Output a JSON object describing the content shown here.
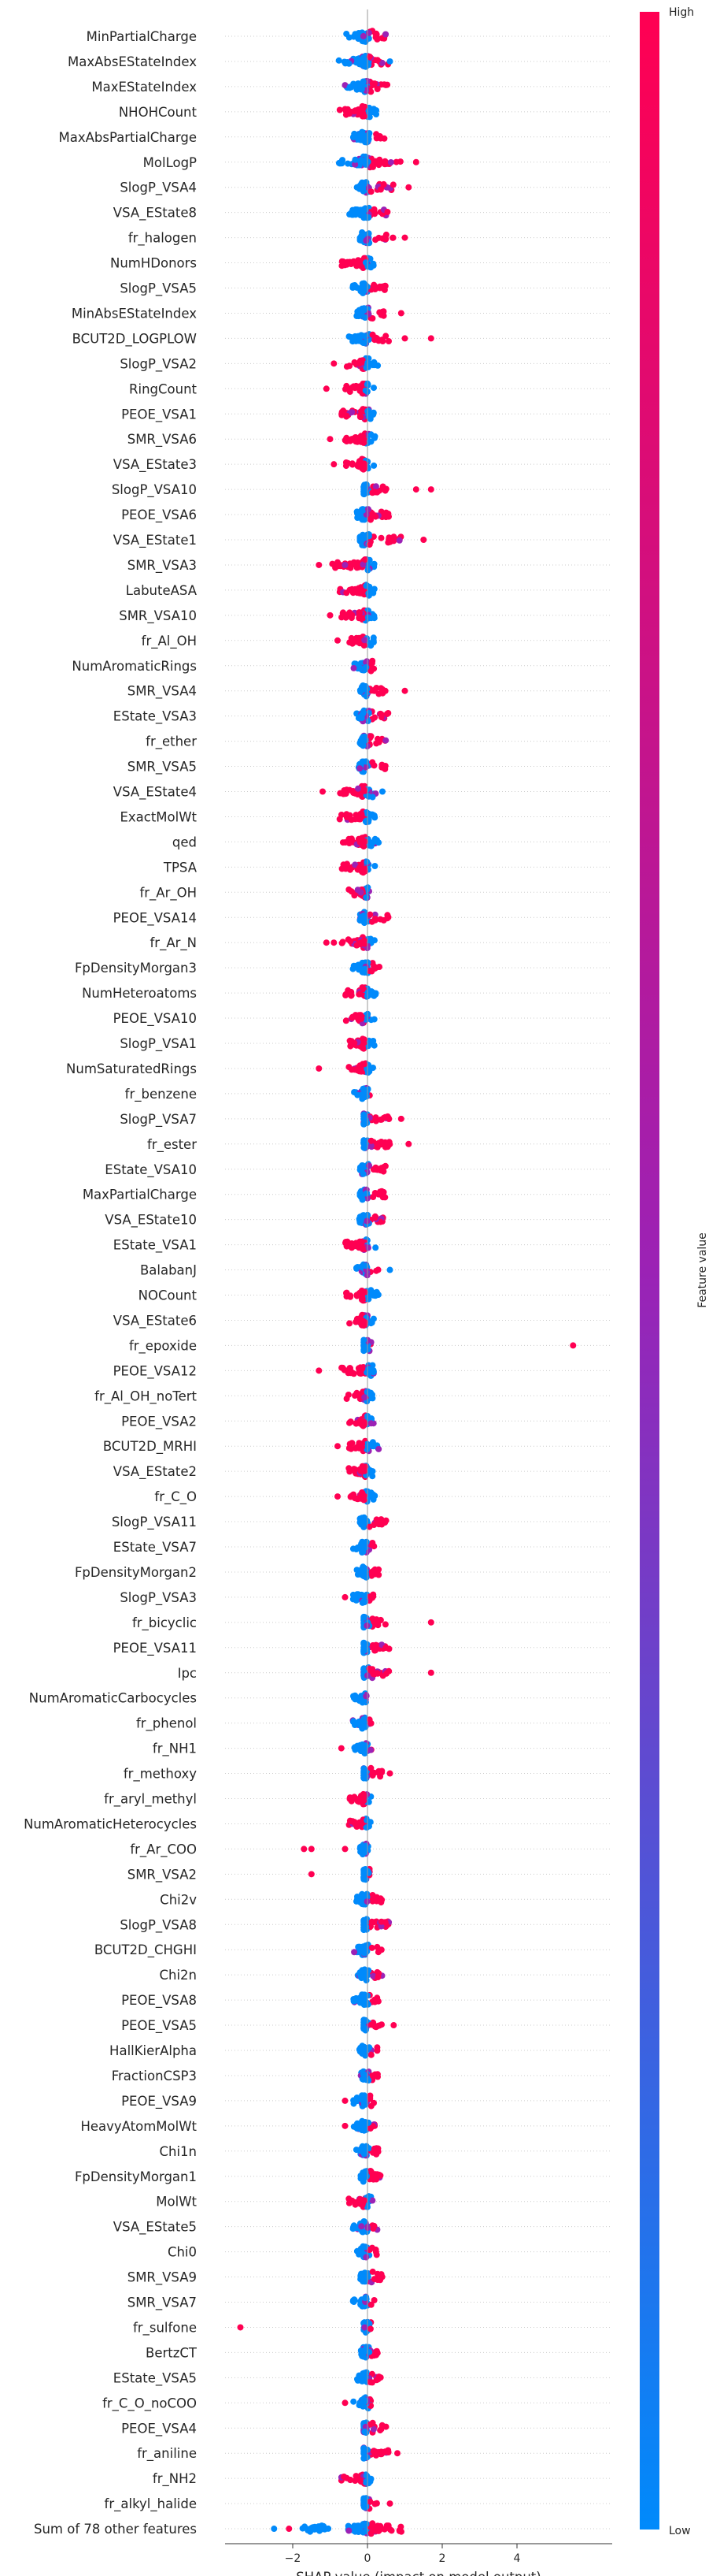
{
  "chart_data": {
    "type": "scatter",
    "subtype": "shap-beeswarm-summary",
    "xlabel": "SHAP value (impact on model output)",
    "xticks": [
      -2,
      0,
      2,
      4
    ],
    "xlim": [
      -3.7,
      6.7
    ],
    "colorbar": {
      "label": "Feature value",
      "high": "High",
      "low": "Low",
      "low_color": "#008afb",
      "mid_color": "#9b22b5",
      "high_color": "#ff0052"
    },
    "features": [
      {
        "name": "MinPartialCharge",
        "min": -0.6,
        "max": 0.6,
        "ol": []
      },
      {
        "name": "MaxAbsEStateIndex",
        "min": -0.8,
        "max": 0.6,
        "ol": [
          [
            0.6,
            "L"
          ]
        ]
      },
      {
        "name": "MaxEStateIndex",
        "min": -0.7,
        "max": 0.6,
        "ol": []
      },
      {
        "name": "NHOHCount",
        "min": -0.8,
        "max": 0.3,
        "ol": []
      },
      {
        "name": "MaxAbsPartialCharge",
        "min": -0.5,
        "max": 0.5,
        "ol": []
      },
      {
        "name": "MolLogP",
        "min": -0.8,
        "max": 0.9,
        "ol": [
          [
            1.3,
            "H"
          ]
        ]
      },
      {
        "name": "SlogP_VSA4",
        "min": -0.3,
        "max": 0.7,
        "ol": [
          [
            1.1,
            "H"
          ]
        ]
      },
      {
        "name": "VSA_EState8",
        "min": -0.5,
        "max": 0.7,
        "ol": []
      },
      {
        "name": "fr_halogen",
        "min": -0.2,
        "max": 0.7,
        "ol": [
          [
            1.0,
            "H"
          ]
        ]
      },
      {
        "name": "NumHDonors",
        "min": -0.7,
        "max": 0.2,
        "ol": []
      },
      {
        "name": "SlogP_VSA5",
        "min": -0.4,
        "max": 0.5,
        "ol": []
      },
      {
        "name": "MinAbsEStateIndex",
        "min": -0.4,
        "max": 0.5,
        "ol": [
          [
            0.9,
            "H"
          ]
        ]
      },
      {
        "name": "BCUT2D_LOGPLOW",
        "min": -0.5,
        "max": 0.6,
        "ol": [
          [
            1.0,
            "H"
          ],
          [
            1.7,
            "H"
          ]
        ]
      },
      {
        "name": "SlogP_VSA2",
        "min": -0.6,
        "max": 0.3,
        "ol": [
          [
            -0.9,
            "H"
          ]
        ]
      },
      {
        "name": "RingCount",
        "min": -0.6,
        "max": 0.2,
        "ol": [
          [
            -1.1,
            "H"
          ]
        ]
      },
      {
        "name": "PEOE_VSA1",
        "min": -0.7,
        "max": 0.2,
        "ol": []
      },
      {
        "name": "SMR_VSA6",
        "min": -0.6,
        "max": 0.2,
        "ol": [
          [
            -1.0,
            "H"
          ]
        ]
      },
      {
        "name": "VSA_EState3",
        "min": -0.6,
        "max": 0.2,
        "ol": [
          [
            -0.9,
            "H"
          ]
        ]
      },
      {
        "name": "SlogP_VSA10",
        "min": -0.1,
        "max": 0.6,
        "ol": [
          [
            1.3,
            "H"
          ],
          [
            1.7,
            "H"
          ]
        ]
      },
      {
        "name": "PEOE_VSA6",
        "min": -0.3,
        "max": 0.6,
        "ol": []
      },
      {
        "name": "VSA_EState1",
        "min": -0.2,
        "max": 0.9,
        "ol": [
          [
            1.5,
            "H"
          ]
        ]
      },
      {
        "name": "SMR_VSA3",
        "min": -1.0,
        "max": 0.2,
        "ol": [
          [
            -1.3,
            "H"
          ]
        ]
      },
      {
        "name": "LabuteASA",
        "min": -0.8,
        "max": 0.3,
        "ol": []
      },
      {
        "name": "SMR_VSA10",
        "min": -0.7,
        "max": 0.2,
        "ol": [
          [
            -1.0,
            "H"
          ]
        ]
      },
      {
        "name": "fr_Al_OH",
        "min": -0.5,
        "max": 0.2,
        "ol": [
          [
            -0.8,
            "H"
          ]
        ]
      },
      {
        "name": "NumAromaticRings",
        "min": -0.4,
        "max": 0.2,
        "ol": []
      },
      {
        "name": "SMR_VSA4",
        "min": -0.2,
        "max": 0.5,
        "ol": [
          [
            1.0,
            "H"
          ]
        ]
      },
      {
        "name": "EState_VSA3",
        "min": -0.3,
        "max": 0.6,
        "ol": []
      },
      {
        "name": "fr_ether",
        "min": -0.2,
        "max": 0.5,
        "ol": []
      },
      {
        "name": "SMR_VSA5",
        "min": -0.3,
        "max": 0.5,
        "ol": []
      },
      {
        "name": "VSA_EState4",
        "min": -0.8,
        "max": 0.3,
        "ol": [
          [
            -1.2,
            "H"
          ],
          [
            0.4,
            "L"
          ]
        ]
      },
      {
        "name": "ExactMolWt",
        "min": -0.8,
        "max": 0.2,
        "ol": []
      },
      {
        "name": "qed",
        "min": -0.7,
        "max": 0.3,
        "ol": []
      },
      {
        "name": "TPSA",
        "min": -0.7,
        "max": 0.2,
        "ol": []
      },
      {
        "name": "fr_Ar_OH",
        "min": -0.5,
        "max": 0.1,
        "ol": []
      },
      {
        "name": "PEOE_VSA14",
        "min": -0.2,
        "max": 0.6,
        "ol": []
      },
      {
        "name": "fr_Ar_N",
        "min": -0.7,
        "max": 0.2,
        "ol": [
          [
            -1.1,
            "H"
          ],
          [
            -0.9,
            "H"
          ]
        ]
      },
      {
        "name": "FpDensityMorgan3",
        "min": -0.4,
        "max": 0.4,
        "ol": []
      },
      {
        "name": "NumHeteroatoms",
        "min": -0.6,
        "max": 0.3,
        "ol": []
      },
      {
        "name": "PEOE_VSA10",
        "min": -0.6,
        "max": 0.2,
        "ol": []
      },
      {
        "name": "SlogP_VSA1",
        "min": -0.5,
        "max": 0.2,
        "ol": []
      },
      {
        "name": "NumSaturatedRings",
        "min": -0.6,
        "max": 0.2,
        "ol": [
          [
            -1.3,
            "H"
          ]
        ]
      },
      {
        "name": "fr_benzene",
        "min": -0.4,
        "max": 0.1,
        "ol": []
      },
      {
        "name": "SlogP_VSA7",
        "min": -0.1,
        "max": 0.6,
        "ol": [
          [
            0.9,
            "H"
          ]
        ]
      },
      {
        "name": "fr_ester",
        "min": -0.1,
        "max": 0.6,
        "ol": [
          [
            1.1,
            "H"
          ]
        ]
      },
      {
        "name": "EState_VSA10",
        "min": -0.2,
        "max": 0.5,
        "ol": []
      },
      {
        "name": "MaxPartialCharge",
        "min": -0.2,
        "max": 0.5,
        "ol": []
      },
      {
        "name": "VSA_EState10",
        "min": -0.3,
        "max": 0.5,
        "ol": []
      },
      {
        "name": "EState_VSA1",
        "min": -0.6,
        "max": 0.3,
        "ol": []
      },
      {
        "name": "BalabanJ",
        "min": -0.3,
        "max": 0.3,
        "ol": [
          [
            0.6,
            "L"
          ]
        ]
      },
      {
        "name": "NOCount",
        "min": -0.6,
        "max": 0.3,
        "ol": []
      },
      {
        "name": "VSA_EState6",
        "min": -0.5,
        "max": 0.2,
        "ol": []
      },
      {
        "name": "fr_epoxide",
        "min": -0.1,
        "max": 0.1,
        "ol": [
          [
            5.5,
            "H"
          ]
        ]
      },
      {
        "name": "PEOE_VSA12",
        "min": -0.7,
        "max": 0.2,
        "ol": [
          [
            -1.3,
            "H"
          ]
        ]
      },
      {
        "name": "fr_Al_OH_noTert",
        "min": -0.6,
        "max": 0.2,
        "ol": []
      },
      {
        "name": "PEOE_VSA2",
        "min": -0.5,
        "max": 0.2,
        "ol": []
      },
      {
        "name": "BCUT2D_MRHI",
        "min": -0.5,
        "max": 0.4,
        "ol": [
          [
            -0.8,
            "H"
          ]
        ]
      },
      {
        "name": "VSA_EState2",
        "min": -0.5,
        "max": 0.2,
        "ol": []
      },
      {
        "name": "fr_C_O",
        "min": -0.5,
        "max": 0.2,
        "ol": [
          [
            -0.8,
            "H"
          ]
        ]
      },
      {
        "name": "SlogP_VSA11",
        "min": -0.2,
        "max": 0.5,
        "ol": []
      },
      {
        "name": "EState_VSA7",
        "min": -0.4,
        "max": 0.2,
        "ol": []
      },
      {
        "name": "FpDensityMorgan2",
        "min": -0.3,
        "max": 0.3,
        "ol": []
      },
      {
        "name": "SlogP_VSA3",
        "min": -0.4,
        "max": 0.2,
        "ol": [
          [
            -0.6,
            "H"
          ]
        ]
      },
      {
        "name": "fr_bicyclic",
        "min": -0.1,
        "max": 0.5,
        "ol": [
          [
            1.7,
            "H"
          ]
        ]
      },
      {
        "name": "PEOE_VSA11",
        "min": -0.1,
        "max": 0.6,
        "ol": []
      },
      {
        "name": "Ipc",
        "min": -0.1,
        "max": 0.6,
        "ol": [
          [
            1.7,
            "H"
          ]
        ]
      },
      {
        "name": "NumAromaticCarbocycles",
        "min": -0.4,
        "max": 0.1,
        "ol": []
      },
      {
        "name": "fr_phenol",
        "min": -0.4,
        "max": 0.1,
        "ol": []
      },
      {
        "name": "fr_NH1",
        "min": -0.4,
        "max": 0.2,
        "ol": [
          [
            -0.7,
            "H"
          ]
        ]
      },
      {
        "name": "fr_methoxy",
        "min": -0.1,
        "max": 0.4,
        "ol": [
          [
            0.6,
            "H"
          ]
        ]
      },
      {
        "name": "fr_aryl_methyl",
        "min": -0.5,
        "max": 0.1,
        "ol": []
      },
      {
        "name": "NumAromaticHeterocycles",
        "min": -0.5,
        "max": 0.1,
        "ol": []
      },
      {
        "name": "fr_Ar_COO",
        "min": -0.2,
        "max": 0.1,
        "ol": [
          [
            -1.7,
            "H"
          ],
          [
            -1.5,
            "H"
          ],
          [
            -0.6,
            "H"
          ]
        ]
      },
      {
        "name": "SMR_VSA2",
        "min": -0.1,
        "max": 0.1,
        "ol": [
          [
            -1.5,
            "H"
          ]
        ]
      },
      {
        "name": "Chi2v",
        "min": -0.3,
        "max": 0.4,
        "ol": []
      },
      {
        "name": "SlogP_VSA8",
        "min": -0.1,
        "max": 0.6,
        "ol": []
      },
      {
        "name": "BCUT2D_CHGHI",
        "min": -0.4,
        "max": 0.4,
        "ol": []
      },
      {
        "name": "Chi2n",
        "min": -0.3,
        "max": 0.4,
        "ol": []
      },
      {
        "name": "PEOE_VSA8",
        "min": -0.4,
        "max": 0.3,
        "ol": []
      },
      {
        "name": "PEOE_VSA5",
        "min": -0.1,
        "max": 0.4,
        "ol": [
          [
            0.7,
            "H"
          ]
        ]
      },
      {
        "name": "HallKierAlpha",
        "min": -0.3,
        "max": 0.3,
        "ol": []
      },
      {
        "name": "FractionCSP3",
        "min": -0.2,
        "max": 0.3,
        "ol": []
      },
      {
        "name": "PEOE_VSA9",
        "min": -0.4,
        "max": 0.2,
        "ol": [
          [
            -0.6,
            "H"
          ]
        ]
      },
      {
        "name": "HeavyAtomMolWt",
        "min": -0.4,
        "max": 0.2,
        "ol": [
          [
            -0.6,
            "H"
          ]
        ]
      },
      {
        "name": "Chi1n",
        "min": -0.3,
        "max": 0.3,
        "ol": []
      },
      {
        "name": "FpDensityMorgan1",
        "min": -0.2,
        "max": 0.4,
        "ol": []
      },
      {
        "name": "MolWt",
        "min": -0.5,
        "max": 0.2,
        "ol": []
      },
      {
        "name": "VSA_EState5",
        "min": -0.4,
        "max": 0.4,
        "ol": []
      },
      {
        "name": "Chi0",
        "min": -0.3,
        "max": 0.3,
        "ol": []
      },
      {
        "name": "SMR_VSA9",
        "min": -0.2,
        "max": 0.4,
        "ol": []
      },
      {
        "name": "SMR_VSA7",
        "min": -0.4,
        "max": 0.2,
        "ol": []
      },
      {
        "name": "fr_sulfone",
        "min": -0.1,
        "max": 0.1,
        "ol": [
          [
            -3.4,
            "H"
          ]
        ]
      },
      {
        "name": "BertzCT",
        "min": -0.2,
        "max": 0.3,
        "ol": []
      },
      {
        "name": "EState_VSA5",
        "min": -0.3,
        "max": 0.4,
        "ol": []
      },
      {
        "name": "fr_C_O_noCOO",
        "min": -0.4,
        "max": 0.2,
        "ol": [
          [
            -0.6,
            "H"
          ]
        ]
      },
      {
        "name": "PEOE_VSA4",
        "min": -0.1,
        "max": 0.5,
        "ol": []
      },
      {
        "name": "fr_aniline",
        "min": -0.1,
        "max": 0.6,
        "ol": [
          [
            0.8,
            "H"
          ]
        ]
      },
      {
        "name": "fr_NH2",
        "min": -0.7,
        "max": 0.1,
        "ol": []
      },
      {
        "name": "fr_alkyl_halide",
        "min": -0.1,
        "max": 0.4,
        "ol": [
          [
            0.6,
            "H"
          ]
        ]
      },
      {
        "name": "Sum of 78 other features",
        "min": -1.8,
        "max": 1.0,
        "ol": [
          [
            -2.5,
            "L"
          ],
          [
            -2.1,
            "H"
          ]
        ]
      }
    ]
  }
}
